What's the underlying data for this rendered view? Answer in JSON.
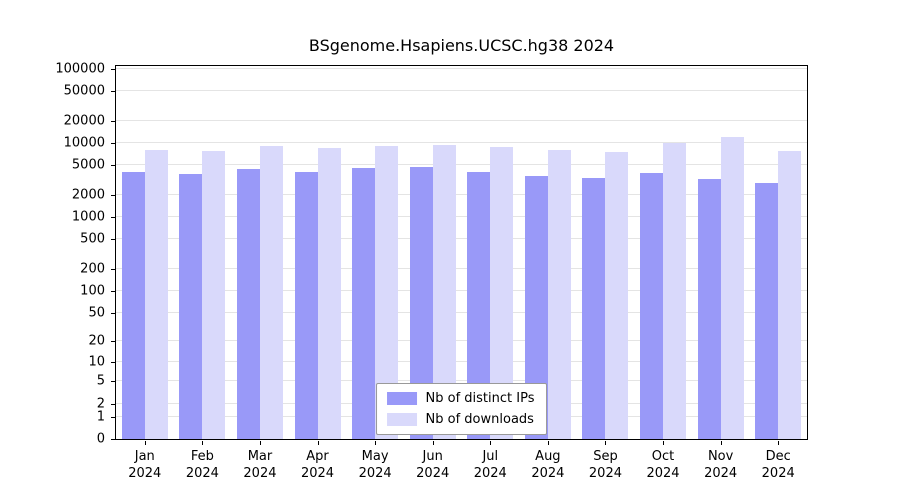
{
  "chart_data": {
    "type": "bar",
    "title": "BSgenome.Hsapiens.UCSC.hg38 2024",
    "categories": [
      "Jan",
      "Feb",
      "Mar",
      "Apr",
      "May",
      "Jun",
      "Jul",
      "Aug",
      "Sep",
      "Oct",
      "Nov",
      "Dec"
    ],
    "year": "2024",
    "series": [
      {
        "name": "Nb of distinct IPs",
        "color": "#9999f8",
        "values": [
          4000,
          3800,
          4400,
          4100,
          4600,
          4700,
          4100,
          3600,
          3400,
          3900,
          3300,
          2900
        ]
      },
      {
        "name": "Nb of downloads",
        "color": "#d9d9fb",
        "values": [
          8000,
          7700,
          9000,
          8600,
          9200,
          9300,
          8700,
          8000,
          7600,
          10000,
          12000,
          7700
        ]
      }
    ],
    "y_ticks": [
      0,
      1,
      2,
      5,
      10,
      20,
      50,
      100,
      200,
      500,
      1000,
      2000,
      5000,
      10000,
      20000,
      50000,
      100000
    ],
    "y_scale": "log10(1+v)",
    "ylim": [
      0,
      100000
    ],
    "xlabel": "",
    "ylabel": "",
    "grid": true,
    "legend_position": "lower center"
  }
}
